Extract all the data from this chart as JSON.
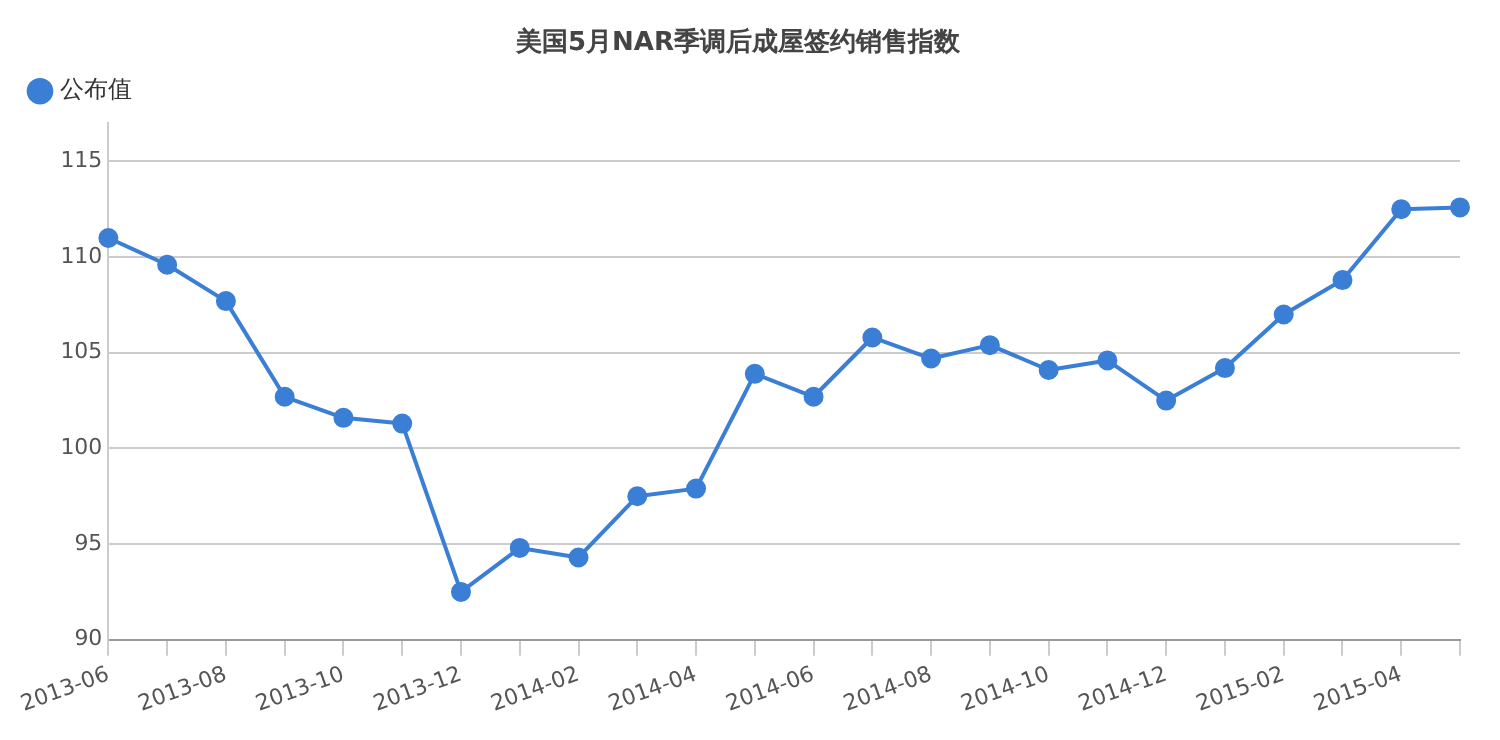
{
  "chart_data": {
    "type": "line",
    "title": "美国5月NAR季调后成屋签约销售指数",
    "categories": [
      "2013-06",
      null,
      "2013-08",
      null,
      "2013-10",
      null,
      "2013-12",
      null,
      "2014-02",
      null,
      "2014-04",
      null,
      "2014-06",
      null,
      "2014-08",
      null,
      "2014-10",
      null,
      "2014-12",
      null,
      "2015-02",
      null,
      "2015-04",
      null
    ],
    "series": [
      {
        "name": "公布值",
        "color": "#3a7fd5",
        "values": [
          111.0,
          109.6,
          107.7,
          102.7,
          101.6,
          101.3,
          92.5,
          94.8,
          94.3,
          97.5,
          97.9,
          103.9,
          102.7,
          105.8,
          104.7,
          105.4,
          104.1,
          104.6,
          102.5,
          104.2,
          107.0,
          108.8,
          112.5,
          112.6
        ]
      }
    ],
    "ylim": [
      90,
      117
    ],
    "yticks": [
      90,
      95,
      100,
      105,
      110,
      115
    ],
    "grid": "y",
    "legend": "top left",
    "marker": "circle",
    "line_style": "solid"
  }
}
